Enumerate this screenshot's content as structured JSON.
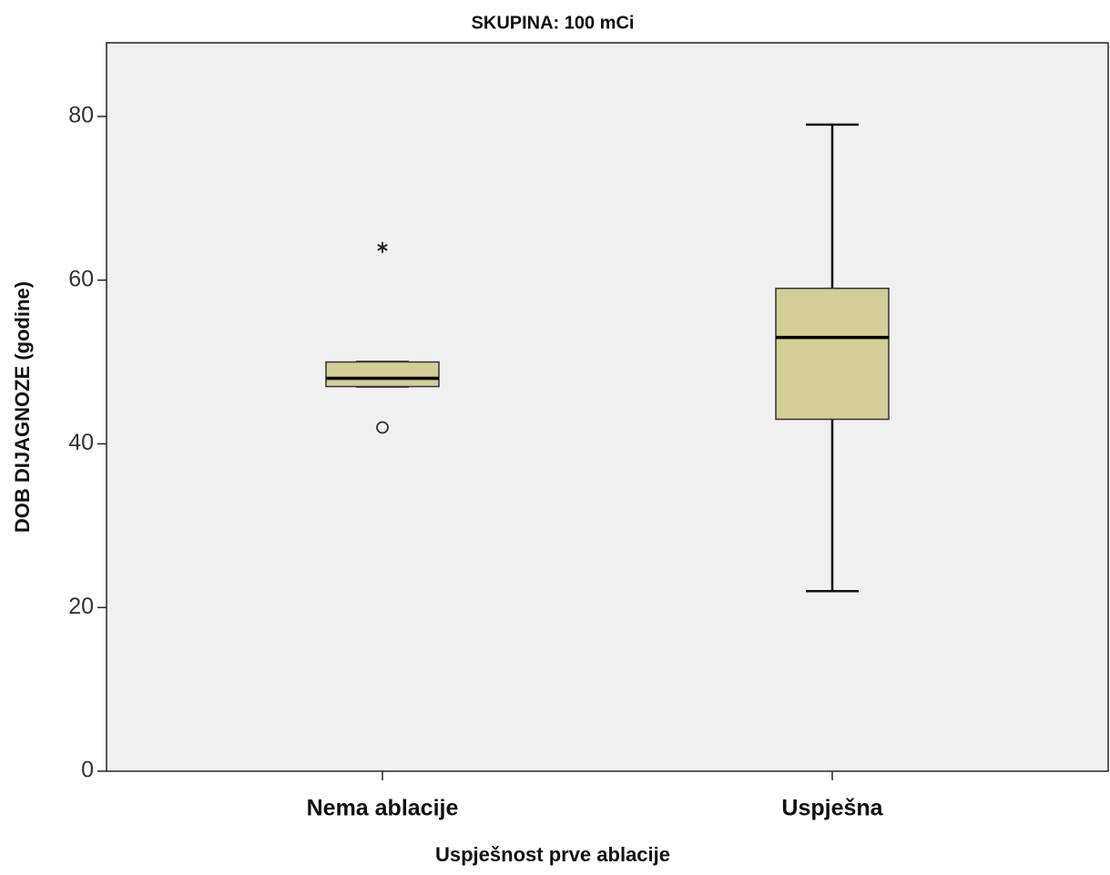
{
  "chart_data": {
    "type": "box",
    "title": "SKUPINA: 100 mCi",
    "x_label": "Uspješnost prve ablacije",
    "y_label": "DOB DIJAGNOZE (godine)",
    "categories": [
      "Nema ablacije",
      "Uspješna"
    ],
    "boxes": [
      {
        "min": 47,
        "q1": 47,
        "median": 48,
        "q3": 50,
        "max": 50,
        "outliers": [
          42
        ],
        "extremes": [
          64
        ]
      },
      {
        "min": 22,
        "q1": 43,
        "median": 53,
        "q3": 59,
        "max": 79,
        "outliers": [],
        "extremes": []
      }
    ],
    "color": "#d3ce97",
    "background": "#f0f0f0",
    "ylim": [
      0,
      89
    ],
    "yticks": [
      0,
      20,
      40,
      60,
      80
    ]
  }
}
